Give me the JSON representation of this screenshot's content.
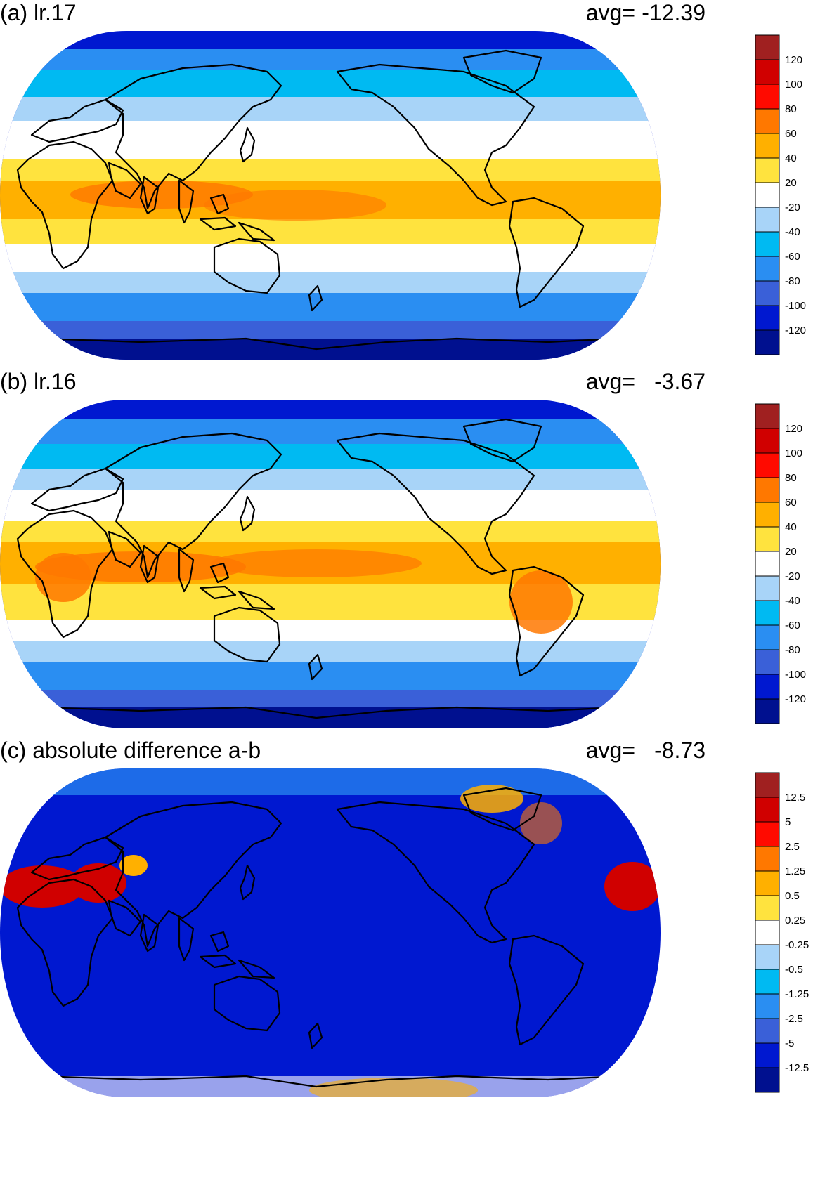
{
  "panels": [
    {
      "title": "(a) lr.17",
      "avg_label": "avg=",
      "avg_value": "-12.39",
      "colorbar": {
        "colors": [
          "#00108f",
          "#0018d0",
          "#3a60d8",
          "#2a8ef2",
          "#00baf2",
          "#a8d4f8",
          "#ffffff",
          "#ffe33e",
          "#ffb000",
          "#ff7800",
          "#ff0a00",
          "#d00000",
          "#a02020"
        ],
        "tick_labels": [
          "-120",
          "-100",
          "-80",
          "-60",
          "-40",
          "-20",
          "20",
          "40",
          "60",
          "80",
          "100",
          "120"
        ]
      }
    },
    {
      "title": "(b) lr.16",
      "avg_label": "avg=",
      "avg_value": "-3.67",
      "colorbar": {
        "colors": [
          "#00108f",
          "#0018d0",
          "#3a60d8",
          "#2a8ef2",
          "#00baf2",
          "#a8d4f8",
          "#ffffff",
          "#ffe33e",
          "#ffb000",
          "#ff7800",
          "#ff0a00",
          "#d00000",
          "#a02020"
        ],
        "tick_labels": [
          "-120",
          "-100",
          "-80",
          "-60",
          "-40",
          "-20",
          "20",
          "40",
          "60",
          "80",
          "100",
          "120"
        ]
      }
    },
    {
      "title": "(c) absolute difference a-b",
      "avg_label": "avg=",
      "avg_value": "-8.73",
      "colorbar": {
        "colors": [
          "#00108f",
          "#0018d0",
          "#3a60d8",
          "#2a8ef2",
          "#00baf2",
          "#a8d4f8",
          "#ffffff",
          "#ffe33e",
          "#ffb000",
          "#ff7800",
          "#ff0a00",
          "#d00000",
          "#a02020"
        ],
        "tick_labels": [
          "-12.5",
          "-5",
          "-2.5",
          "-1.25",
          "-0.5",
          "-0.25",
          "0.25",
          "0.5",
          "1.25",
          "2.5",
          "5",
          "12.5"
        ]
      }
    }
  ]
}
